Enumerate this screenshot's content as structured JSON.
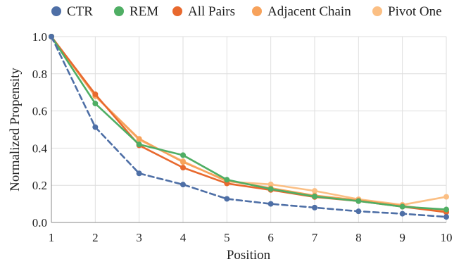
{
  "chart_data": {
    "type": "line",
    "title": "",
    "xlabel": "Position",
    "ylabel": "Normalized Propensity",
    "x": [
      1,
      2,
      3,
      4,
      5,
      6,
      7,
      8,
      9,
      10
    ],
    "xlim": [
      1,
      10
    ],
    "ylim": [
      0,
      1
    ],
    "yticks": [
      0.0,
      0.2,
      0.4,
      0.6,
      0.8,
      1.0
    ],
    "ytick_labels": [
      "0.0",
      "0.2",
      "0.4",
      "0.6",
      "0.8",
      "1.0"
    ],
    "xtick_labels": [
      "1",
      "2",
      "3",
      "4",
      "5",
      "6",
      "7",
      "8",
      "9",
      "10"
    ],
    "grid": true,
    "legend_position": "top",
    "series": [
      {
        "name": "Pivot One",
        "color": "#fbbf84",
        "dashed": false,
        "values": [
          1.0,
          0.68,
          0.445,
          0.33,
          0.22,
          0.205,
          0.17,
          0.125,
          0.095,
          0.138
        ]
      },
      {
        "name": "Adjacent Chain",
        "color": "#f7a25b",
        "dashed": false,
        "values": [
          1.0,
          0.68,
          0.45,
          0.325,
          0.225,
          0.185,
          0.145,
          0.12,
          0.09,
          0.06
        ]
      },
      {
        "name": "All Pairs",
        "color": "#e8692e",
        "dashed": false,
        "values": [
          1.0,
          0.69,
          0.415,
          0.295,
          0.21,
          0.175,
          0.137,
          0.115,
          0.085,
          0.055
        ]
      },
      {
        "name": "REM",
        "color": "#4fae64",
        "dashed": false,
        "values": [
          1.0,
          0.64,
          0.42,
          0.362,
          0.23,
          0.18,
          0.14,
          0.115,
          0.085,
          0.07
        ]
      },
      {
        "name": "CTR",
        "color": "#4e6fa6",
        "dashed": true,
        "values": [
          1.0,
          0.513,
          0.264,
          0.204,
          0.127,
          0.1,
          0.08,
          0.06,
          0.047,
          0.03
        ]
      }
    ],
    "legend": [
      {
        "name": "CTR",
        "color": "#4e6fa6"
      },
      {
        "name": "REM",
        "color": "#4fae64"
      },
      {
        "name": "All Pairs",
        "color": "#e8692e"
      },
      {
        "name": "Adjacent Chain",
        "color": "#f7a25b"
      },
      {
        "name": "Pivot One",
        "color": "#fbbf84"
      }
    ]
  }
}
